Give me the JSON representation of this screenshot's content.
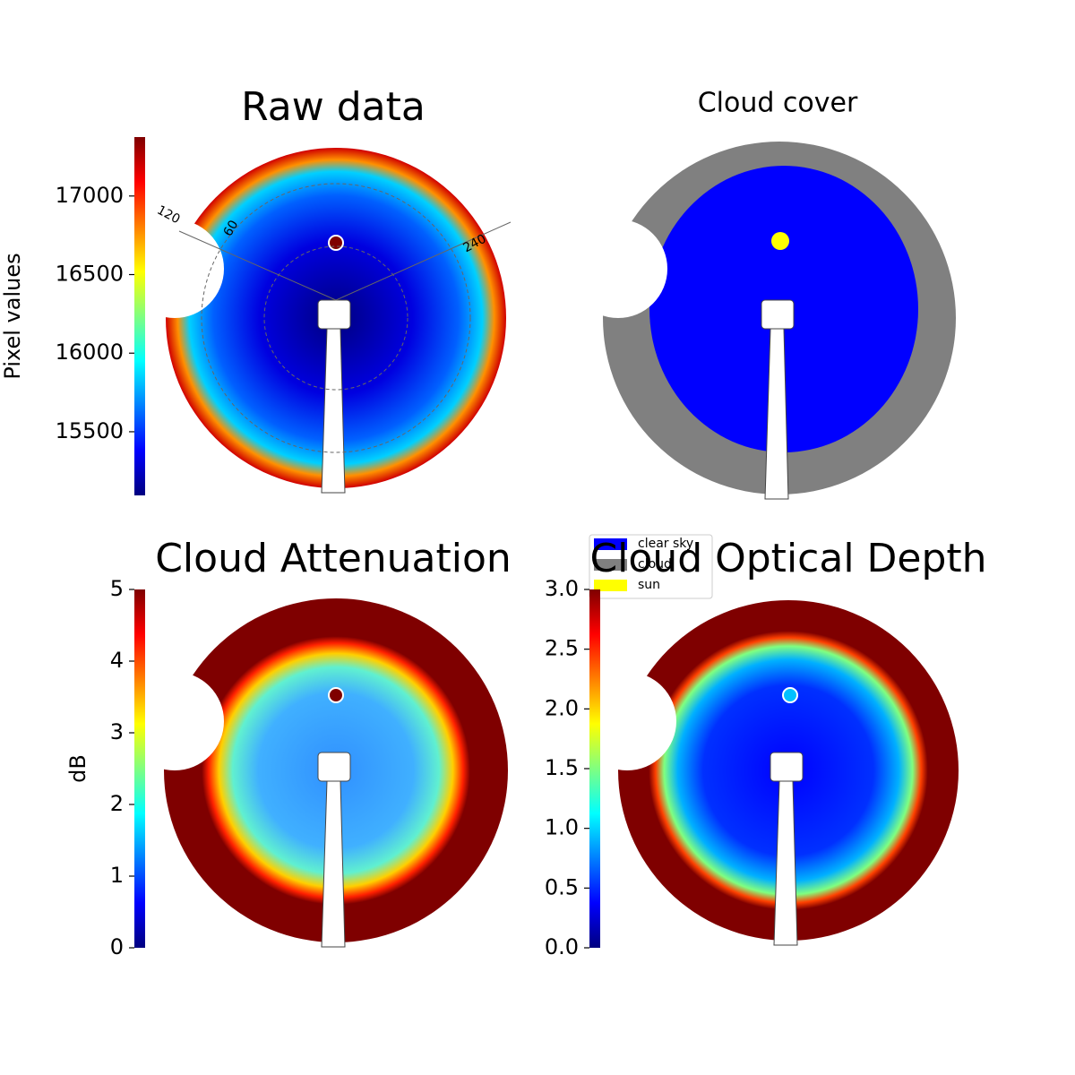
{
  "chart_data": [
    {
      "type": "image",
      "title": "Raw data",
      "polar_labels": [
        "120",
        "60",
        "240"
      ],
      "colorbar": {
        "label": "Pixel values",
        "lim": [
          15095,
          17375
        ],
        "ticks": [
          15500,
          16000,
          16500,
          17000
        ]
      }
    },
    {
      "type": "image",
      "title": "Cloud cover",
      "legend": [
        {
          "name": "clear sky",
          "color": "#0000ff"
        },
        {
          "name": "cloud",
          "color": "#808080"
        },
        {
          "name": "sun",
          "color": "#ffff00"
        }
      ]
    },
    {
      "type": "image",
      "title": "Cloud Attenuation",
      "colorbar": {
        "label": "dB",
        "lim": [
          0,
          5
        ],
        "ticks": [
          0,
          1,
          2,
          3,
          4,
          5
        ]
      }
    },
    {
      "type": "image",
      "title": "Cloud Optical Depth",
      "colorbar": {
        "lim": [
          0,
          3
        ],
        "ticks": [
          {
            "value": 0,
            "label": "0.0"
          },
          {
            "value": 0.5,
            "label": "0.5"
          },
          {
            "value": 1,
            "label": "1.0"
          },
          {
            "value": 1.5,
            "label": "1.5"
          },
          {
            "value": 2,
            "label": "2.0"
          },
          {
            "value": 2.5,
            "label": "2.5"
          },
          {
            "value": 3,
            "label": "3.0"
          }
        ]
      }
    }
  ]
}
